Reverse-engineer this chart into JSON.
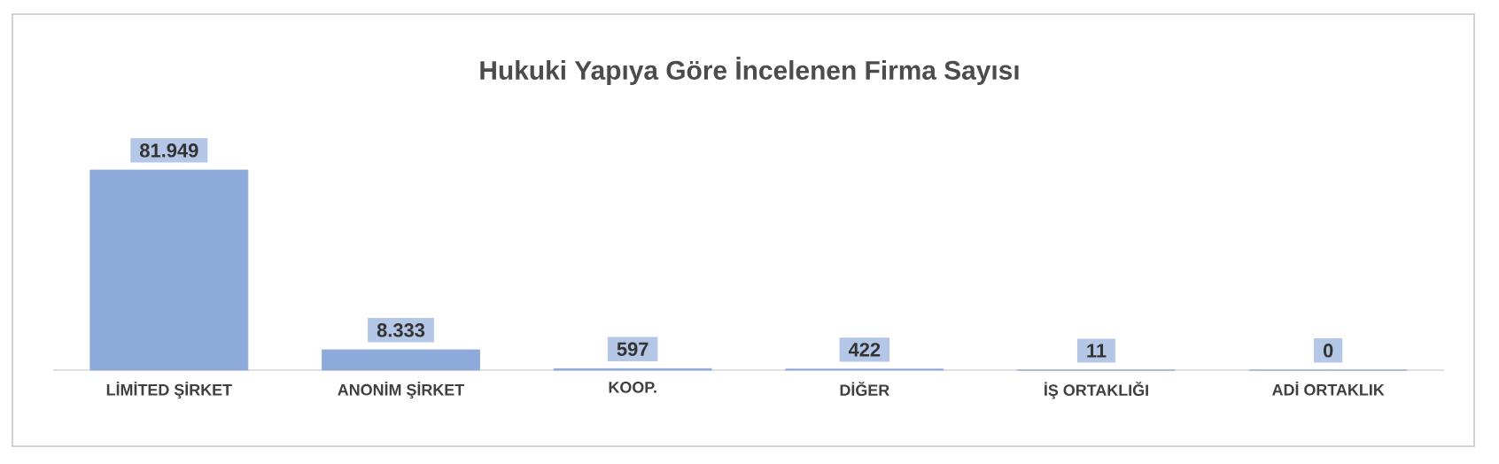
{
  "chart_data": {
    "type": "bar",
    "title": "Hukuki Yapıya Göre İncelenen Firma Sayısı",
    "categories": [
      "LİMİTED ŞİRKET",
      "ANONİM ŞİRKET",
      "KOOP.",
      "DİĞER",
      "İŞ ORTAKLIĞI",
      "ADİ ORTAKLIK"
    ],
    "values": [
      81949,
      8333,
      597,
      422,
      11,
      0
    ],
    "value_labels": [
      "81.949",
      "8.333",
      "597",
      "422",
      "11",
      "0"
    ],
    "color": "#8eaadb"
  }
}
